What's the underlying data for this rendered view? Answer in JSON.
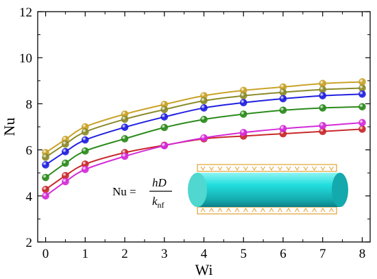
{
  "chart_data": {
    "type": "line",
    "xlabel": "Wi",
    "ylabel": "Nu",
    "xlim": [
      -0.2,
      8.2
    ],
    "ylim": [
      2,
      12
    ],
    "xticks": [
      "0",
      "1",
      "2",
      "3",
      "4",
      "5",
      "6",
      "7",
      "8"
    ],
    "yticks": [
      "2",
      "4",
      "6",
      "8",
      "10",
      "12"
    ],
    "grid": false,
    "x": [
      0,
      0.5,
      1,
      2,
      3,
      4,
      5,
      6,
      7,
      8
    ],
    "series": [
      {
        "color": "#c9a227",
        "values": [
          5.88,
          6.45,
          7.0,
          7.55,
          7.97,
          8.35,
          8.58,
          8.73,
          8.88,
          8.95
        ]
      },
      {
        "color": "#8a8a2a",
        "values": [
          5.68,
          6.25,
          6.78,
          7.33,
          7.75,
          8.13,
          8.35,
          8.5,
          8.62,
          8.68
        ]
      },
      {
        "color": "#1f1fe0",
        "values": [
          5.35,
          5.92,
          6.43,
          6.98,
          7.43,
          7.82,
          8.05,
          8.22,
          8.35,
          8.42
        ]
      },
      {
        "color": "#2a8a1a",
        "values": [
          4.8,
          5.42,
          5.95,
          6.48,
          6.97,
          7.32,
          7.55,
          7.72,
          7.82,
          7.87
        ]
      },
      {
        "color": "#c8282a",
        "values": [
          4.28,
          4.88,
          5.38,
          5.88,
          6.2,
          6.48,
          6.6,
          6.7,
          6.8,
          6.9
        ]
      },
      {
        "color": "#d42ad8",
        "values": [
          4.0,
          4.62,
          5.15,
          5.72,
          6.18,
          6.52,
          6.75,
          6.92,
          7.05,
          7.18
        ]
      }
    ],
    "inset": {
      "formula_lhs": "Nu =",
      "formula_num": "hD",
      "formula_den_main": "k",
      "formula_den_sub": "nf",
      "cylinder_color": "#22dede",
      "plate_color": "#e0a030"
    }
  }
}
